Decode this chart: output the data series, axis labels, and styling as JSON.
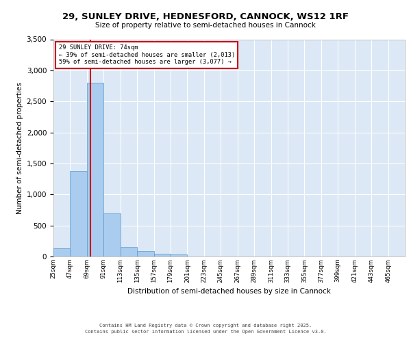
{
  "title_line1": "29, SUNLEY DRIVE, HEDNESFORD, CANNOCK, WS12 1RF",
  "title_line2": "Size of property relative to semi-detached houses in Cannock",
  "xlabel": "Distribution of semi-detached houses by size in Cannock",
  "ylabel": "Number of semi-detached properties",
  "annotation_title": "29 SUNLEY DRIVE: 74sqm",
  "annotation_line2": "← 39% of semi-detached houses are smaller (2,013)",
  "annotation_line3": "59% of semi-detached houses are larger (3,077) →",
  "footer_line1": "Contains HM Land Registry data © Crown copyright and database right 2025.",
  "footer_line2": "Contains public sector information licensed under the Open Government Licence v3.0.",
  "property_size_sqm": 74,
  "bin_labels": [
    "25sqm",
    "47sqm",
    "69sqm",
    "91sqm",
    "113sqm",
    "135sqm",
    "157sqm",
    "179sqm",
    "201sqm",
    "223sqm",
    "245sqm",
    "267sqm",
    "289sqm",
    "311sqm",
    "333sqm",
    "355sqm",
    "377sqm",
    "399sqm",
    "421sqm",
    "443sqm",
    "465sqm"
  ],
  "bin_edges": [
    25,
    47,
    69,
    91,
    113,
    135,
    157,
    179,
    201,
    223,
    245,
    267,
    289,
    311,
    333,
    355,
    377,
    399,
    421,
    443,
    465
  ],
  "bin_counts": [
    130,
    1380,
    2800,
    700,
    155,
    90,
    45,
    30,
    0,
    0,
    0,
    0,
    0,
    0,
    0,
    0,
    0,
    0,
    0,
    0,
    0
  ],
  "bar_color": "#aaccee",
  "bar_edge_color": "#5599cc",
  "vline_color": "#cc0000",
  "vline_x": 74,
  "annotation_box_color": "#cc0000",
  "background_color": "#dce8f5",
  "ylim": [
    0,
    3500
  ],
  "yticks": [
    0,
    500,
    1000,
    1500,
    2000,
    2500,
    3000,
    3500
  ]
}
